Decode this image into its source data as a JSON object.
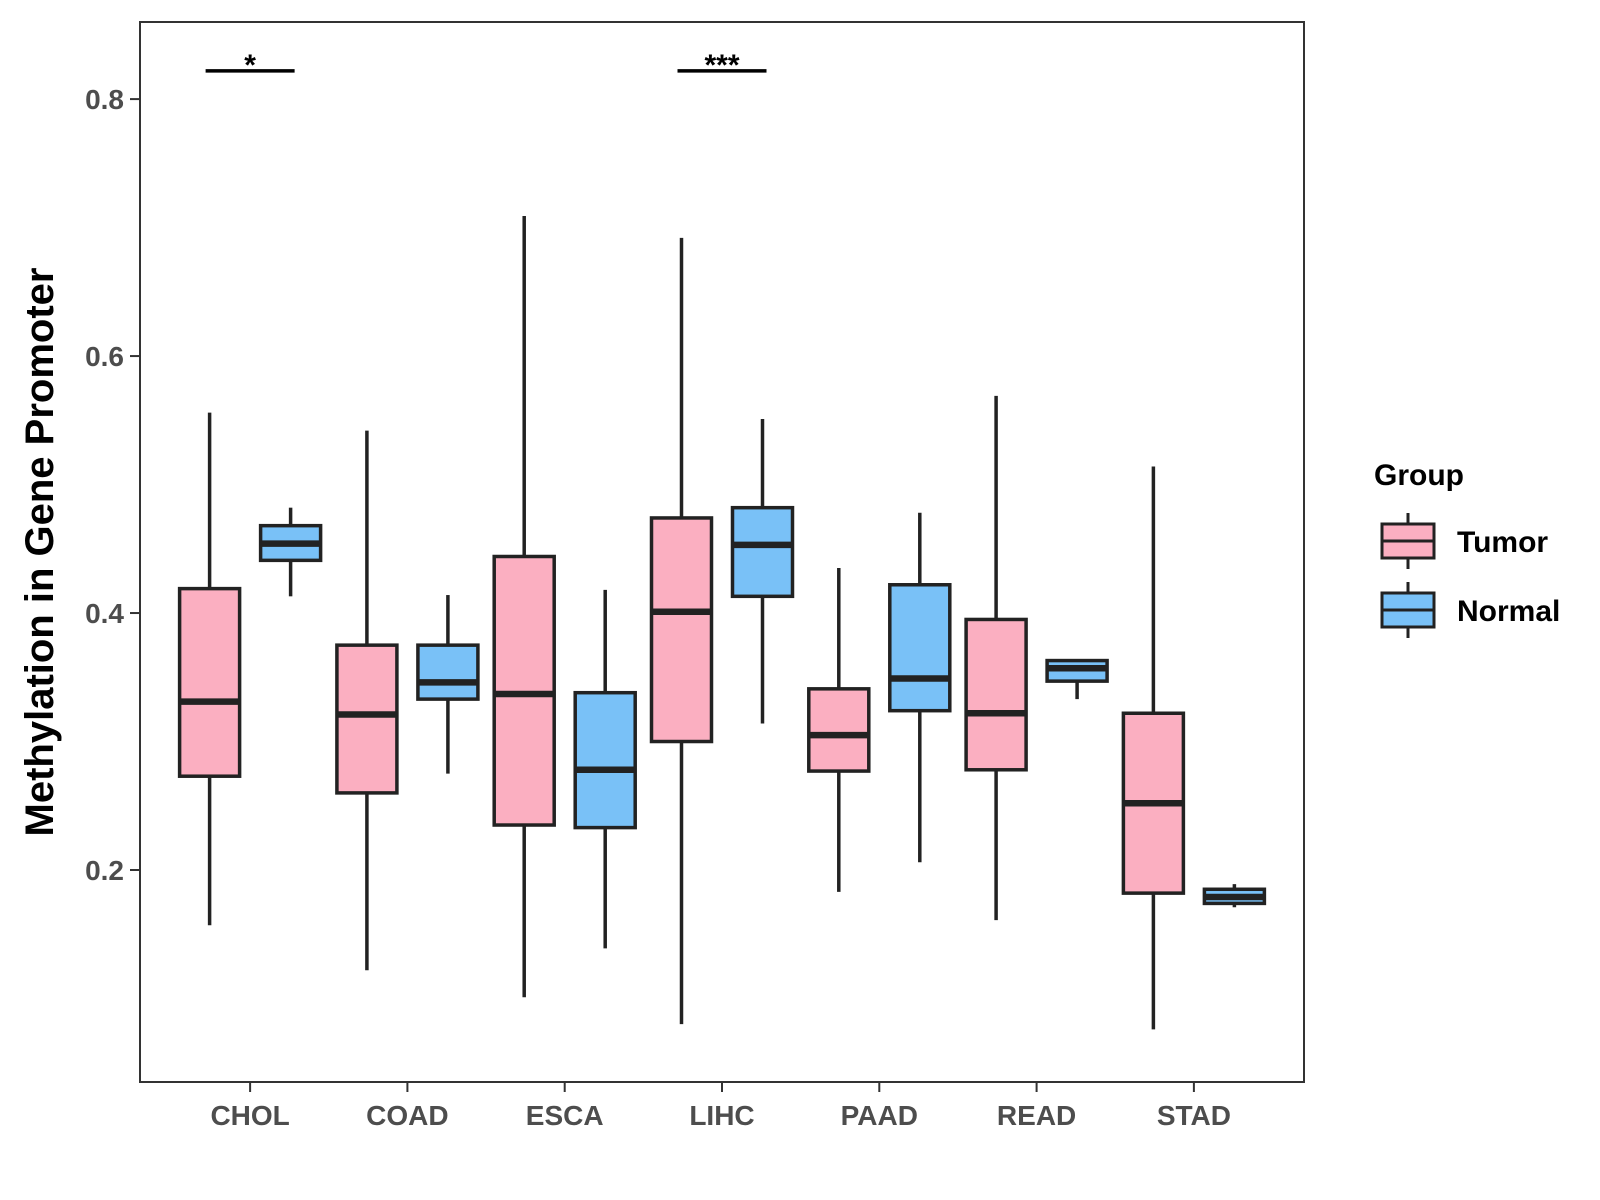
{
  "chart_data": {
    "type": "boxplot",
    "title": "",
    "xlabel": "",
    "ylabel": "Methylation in Gene Promoter",
    "ylim": [
      0.035,
      0.86
    ],
    "yticks": [
      0.2,
      0.4,
      0.6,
      0.8
    ],
    "ytick_labels": [
      "0.2",
      "0.4",
      "0.6",
      "0.8"
    ],
    "categories": [
      "CHOL",
      "COAD",
      "ESCA",
      "LIHC",
      "PAAD",
      "READ",
      "STAD"
    ],
    "legend": {
      "title": "Group",
      "position": "right",
      "items": [
        {
          "name": "Tumor",
          "color": "#fbafc1"
        },
        {
          "name": "Normal",
          "color": "#79c1f7"
        }
      ]
    },
    "series": [
      {
        "name": "Tumor",
        "color": "#fbafc1",
        "boxes": [
          {
            "min": 0.157,
            "q1": 0.273,
            "median": 0.331,
            "q3": 0.419,
            "max": 0.556
          },
          {
            "min": 0.122,
            "q1": 0.26,
            "median": 0.321,
            "q3": 0.375,
            "max": 0.542
          },
          {
            "min": 0.101,
            "q1": 0.235,
            "median": 0.337,
            "q3": 0.444,
            "max": 0.709
          },
          {
            "min": 0.08,
            "q1": 0.3,
            "median": 0.401,
            "q3": 0.474,
            "max": 0.692
          },
          {
            "min": 0.183,
            "q1": 0.277,
            "median": 0.305,
            "q3": 0.341,
            "max": 0.435
          },
          {
            "min": 0.161,
            "q1": 0.278,
            "median": 0.322,
            "q3": 0.395,
            "max": 0.569
          },
          {
            "min": 0.076,
            "q1": 0.182,
            "median": 0.252,
            "q3": 0.322,
            "max": 0.514
          }
        ]
      },
      {
        "name": "Normal",
        "color": "#79c1f7",
        "boxes": [
          {
            "min": 0.413,
            "q1": 0.441,
            "median": 0.454,
            "q3": 0.468,
            "max": 0.482
          },
          {
            "min": 0.275,
            "q1": 0.333,
            "median": 0.346,
            "q3": 0.375,
            "max": 0.414
          },
          {
            "min": 0.139,
            "q1": 0.233,
            "median": 0.278,
            "q3": 0.338,
            "max": 0.418
          },
          {
            "min": 0.314,
            "q1": 0.413,
            "median": 0.453,
            "q3": 0.482,
            "max": 0.551
          },
          {
            "min": 0.206,
            "q1": 0.324,
            "median": 0.349,
            "q3": 0.422,
            "max": 0.478
          },
          {
            "min": 0.333,
            "q1": 0.347,
            "median": 0.357,
            "q3": 0.363,
            "max": 0.363
          },
          {
            "min": 0.171,
            "q1": 0.174,
            "median": 0.179,
            "q3": 0.185,
            "max": 0.189
          }
        ]
      }
    ],
    "significance": [
      {
        "category": "CHOL",
        "label": "*",
        "y": 0.822
      },
      {
        "category": "LIHC",
        "label": "***",
        "y": 0.822
      }
    ]
  }
}
